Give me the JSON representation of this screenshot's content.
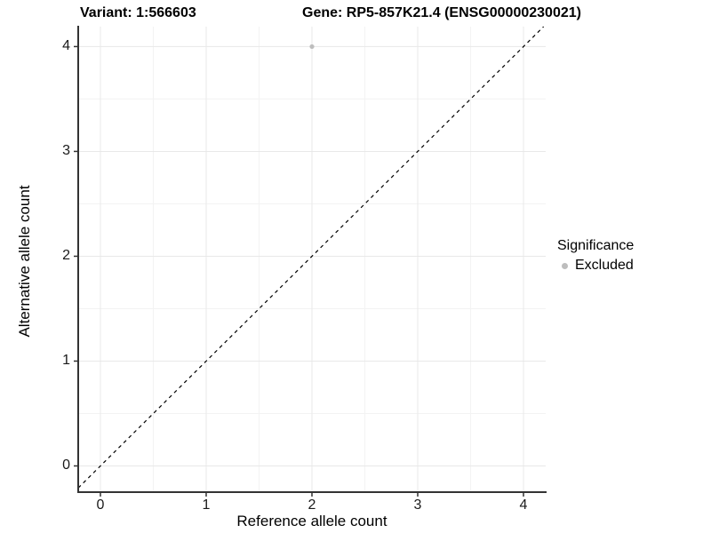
{
  "chart_data": {
    "type": "scatter",
    "title_variant": "Variant: 1:566603",
    "title_gene": "Gene: RP5-857K21.4 (ENSG00000230021)",
    "xlabel": "Reference allele count",
    "ylabel": "Alternative allele count",
    "xlim": [
      -0.21,
      4.21
    ],
    "ylim": [
      -0.25,
      4.19
    ],
    "x_ticks": [
      0,
      1,
      2,
      3,
      4
    ],
    "y_ticks": [
      0,
      1,
      2,
      3,
      4
    ],
    "x_minor_ticks": [
      0.5,
      1.5,
      2.5,
      3.5
    ],
    "y_minor_ticks": [
      0.5,
      1.5,
      2.5,
      3.5
    ],
    "grid": true,
    "points": [
      {
        "x": 2,
        "y": 4,
        "significance": "Excluded"
      }
    ],
    "identity_line": {
      "slope": 1,
      "intercept": 0,
      "style": "dashed",
      "x1": -0.21,
      "y1": -0.21,
      "x2": 4.19,
      "y2": 4.19
    },
    "legend": {
      "position": "right",
      "title": "Significance",
      "entries": [
        {
          "label": "Excluded",
          "color": "#bdbdbd",
          "marker": "circle"
        }
      ]
    },
    "colors": {
      "point": "#bdbdbd",
      "grid_major": "#e8e8e8",
      "grid_minor": "#f3f3f3",
      "axis": "#333333",
      "tick": "#333333",
      "identity_line": "#000000",
      "background": "#ffffff"
    }
  }
}
